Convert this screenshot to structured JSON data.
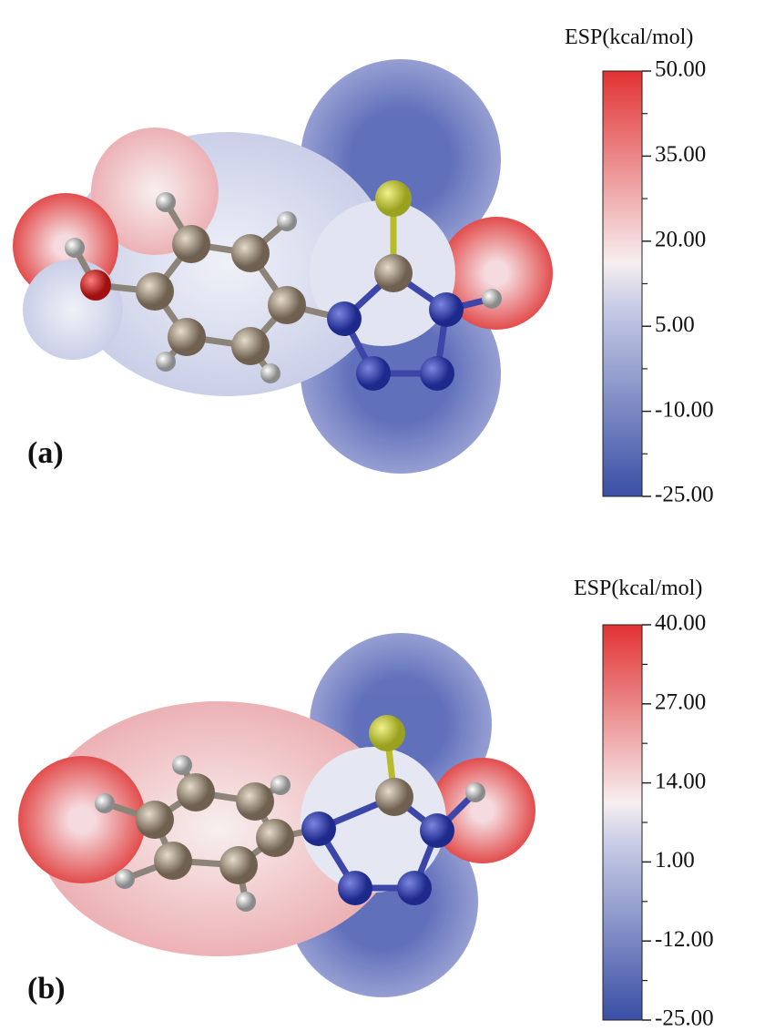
{
  "panels": [
    {
      "label": "(a)",
      "colorbar": {
        "title": "ESP(kcal/mol)",
        "ticks": [
          {
            "value": 50,
            "label": "50.00"
          },
          {
            "value": 35,
            "label": "35.00"
          },
          {
            "value": 20,
            "label": "20.00"
          },
          {
            "value": 5,
            "label": "5.00"
          },
          {
            "value": -10,
            "label": "-10.00"
          },
          {
            "value": -25,
            "label": "-25.00"
          }
        ]
      }
    },
    {
      "label": "(b)",
      "colorbar": {
        "title": "ESP(kcal/mol)",
        "ticks": [
          {
            "value": 40,
            "label": "40.00"
          },
          {
            "value": 27,
            "label": "27.00"
          },
          {
            "value": 14,
            "label": "14.00"
          },
          {
            "value": 1,
            "label": "1.00"
          },
          {
            "value": -12,
            "label": "-12.00"
          },
          {
            "value": -25,
            "label": "-25.00"
          }
        ]
      }
    }
  ]
}
